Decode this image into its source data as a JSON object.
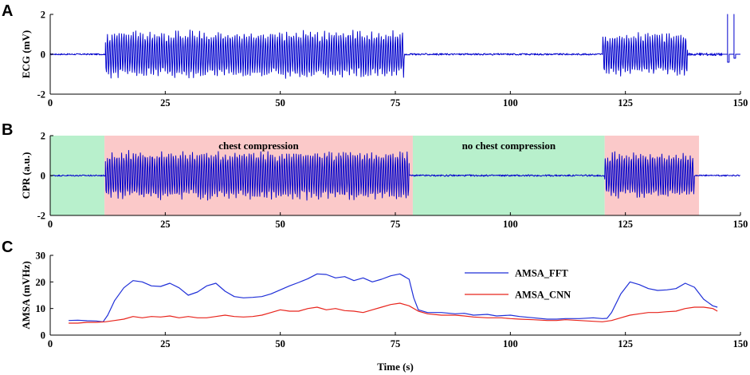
{
  "colors": {
    "signal": "#0000cc",
    "fft": "#1f2fd8",
    "cnn": "#e8241c",
    "compression_bg": "#fbc9c9",
    "no_compression_bg": "#b8f0cc"
  },
  "chart_data": [
    {
      "panel": "A",
      "type": "line",
      "xlabel": "",
      "ylabel": "ECG (mV)",
      "xlim": [
        0,
        150
      ],
      "ylim": [
        -2,
        2
      ],
      "xticks": [
        "0",
        "25",
        "50",
        "75",
        "100",
        "125",
        "150"
      ],
      "yticks": [
        "-2",
        "0",
        "2"
      ],
      "series": [
        {
          "color": "#0000cc",
          "segments": [
            {
              "x": [
                0,
                12
              ],
              "kind": "baseline",
              "amplitude": 0.05
            },
            {
              "x": [
                12,
                77
              ],
              "kind": "oscillation",
              "amplitude": 1.1
            },
            {
              "x": [
                77,
                120
              ],
              "kind": "baseline",
              "amplitude": 0.06
            },
            {
              "x": [
                120,
                138.5
              ],
              "kind": "oscillation",
              "amplitude": 1.0
            },
            {
              "x": [
                138.5,
                146
              ],
              "kind": "baseline",
              "amplitude": 0.1
            },
            {
              "x": [
                146,
                150
              ],
              "kind": "pulses",
              "amplitude": 2
            }
          ]
        }
      ]
    },
    {
      "panel": "B",
      "type": "line",
      "xlabel": "",
      "ylabel": "CPR (a.u.)",
      "xlim": [
        0,
        150
      ],
      "ylim": [
        -2,
        2
      ],
      "xticks": [
        "0",
        "25",
        "50",
        "75",
        "100",
        "125",
        "150"
      ],
      "yticks": [
        "-2",
        "0",
        "2"
      ],
      "regions": [
        {
          "x": [
            0,
            11.8
          ],
          "kind": "no_compression",
          "label": ""
        },
        {
          "x": [
            11.8,
            78.8
          ],
          "kind": "compression",
          "label": "chest compression"
        },
        {
          "x": [
            78.8,
            120.5
          ],
          "kind": "no_compression",
          "label": "no chest compression"
        },
        {
          "x": [
            120.5,
            141
          ],
          "kind": "compression",
          "label": ""
        }
      ],
      "series": [
        {
          "color": "#0000cc",
          "segments": [
            {
              "x": [
                0,
                12
              ],
              "kind": "baseline",
              "amplitude": 0.05
            },
            {
              "x": [
                12,
                78
              ],
              "kind": "oscillation",
              "amplitude": 1.15
            },
            {
              "x": [
                78,
                120.5
              ],
              "kind": "baseline",
              "amplitude": 0.06
            },
            {
              "x": [
                120.5,
                140
              ],
              "kind": "oscillation",
              "amplitude": 1.1
            },
            {
              "x": [
                140,
                150
              ],
              "kind": "baseline",
              "amplitude": 0.05
            }
          ]
        }
      ]
    },
    {
      "panel": "C",
      "type": "line",
      "xlabel": "Time (s)",
      "ylabel": "AMSA (mVHz)",
      "xlim": [
        0,
        150
      ],
      "ylim": [
        0,
        30
      ],
      "xticks": [
        "0",
        "25",
        "50",
        "75",
        "100",
        "125",
        "150"
      ],
      "yticks": [
        "0",
        "10",
        "20",
        "30"
      ],
      "legend": {
        "position": "top-right"
      },
      "series": [
        {
          "name": "AMSA_FFT",
          "color": "#1f2fd8",
          "x": [
            4,
            6,
            8,
            10,
            11.5,
            12.5,
            14,
            16,
            18,
            20,
            22,
            24,
            26,
            28,
            30,
            32,
            34,
            36,
            38,
            40,
            42,
            44,
            46,
            48,
            50,
            52,
            54,
            56,
            58,
            60,
            62,
            64,
            66,
            68,
            70,
            72,
            74,
            76,
            78,
            79,
            80,
            82,
            85,
            88,
            90,
            92,
            95,
            97,
            100,
            102,
            105,
            108,
            110,
            112,
            115,
            118,
            120,
            121,
            122,
            124,
            126,
            128,
            130,
            132,
            134,
            136,
            138,
            140,
            142,
            144,
            145
          ],
          "values": [
            5.5,
            5.6,
            5.4,
            5.3,
            5.0,
            7.5,
            13.0,
            17.8,
            20.5,
            20.0,
            18.5,
            18.3,
            19.5,
            17.8,
            15.0,
            16.2,
            18.5,
            19.5,
            16.5,
            14.5,
            14.0,
            14.2,
            14.5,
            15.5,
            17.0,
            18.5,
            19.8,
            21.2,
            23.0,
            22.8,
            21.5,
            22.0,
            20.5,
            21.5,
            20.0,
            21.0,
            22.3,
            23.0,
            21.0,
            14.0,
            9.5,
            8.5,
            8.5,
            8.0,
            8.2,
            7.5,
            7.8,
            7.2,
            7.5,
            7.0,
            6.5,
            6.0,
            6.0,
            6.2,
            6.2,
            6.5,
            6.2,
            6.3,
            8.5,
            15.5,
            20.0,
            19.0,
            17.5,
            16.8,
            17.0,
            17.5,
            19.5,
            18.0,
            13.5,
            11.0,
            10.5
          ]
        },
        {
          "name": "AMSA_CNN",
          "color": "#e8241c",
          "x": [
            4,
            6,
            8,
            10,
            12,
            14,
            16,
            18,
            20,
            22,
            24,
            26,
            28,
            30,
            32,
            34,
            36,
            38,
            40,
            42,
            44,
            46,
            48,
            50,
            52,
            54,
            56,
            58,
            60,
            62,
            64,
            66,
            68,
            70,
            72,
            74,
            76,
            78,
            80,
            82,
            85,
            88,
            90,
            92,
            95,
            98,
            100,
            102,
            105,
            108,
            110,
            112,
            115,
            118,
            120,
            122,
            124,
            126,
            128,
            130,
            132,
            134,
            136,
            138,
            140,
            142,
            144,
            145
          ],
          "values": [
            4.5,
            4.5,
            4.8,
            4.8,
            5.0,
            5.5,
            6.0,
            7.0,
            6.5,
            7.0,
            6.8,
            7.2,
            6.5,
            7.0,
            6.5,
            6.5,
            7.0,
            7.5,
            7.0,
            6.8,
            7.0,
            7.5,
            8.5,
            9.5,
            9.0,
            9.0,
            10.0,
            10.5,
            9.5,
            10.0,
            9.2,
            9.0,
            8.5,
            9.5,
            10.5,
            11.5,
            12.0,
            11.0,
            9.0,
            8.0,
            7.5,
            7.5,
            7.2,
            6.8,
            6.5,
            6.5,
            6.2,
            6.0,
            5.8,
            5.5,
            5.5,
            5.8,
            5.5,
            5.2,
            5.0,
            5.5,
            6.5,
            7.5,
            8.0,
            8.5,
            8.5,
            8.8,
            9.0,
            10.0,
            10.5,
            10.5,
            10.0,
            9.0
          ]
        }
      ]
    }
  ]
}
